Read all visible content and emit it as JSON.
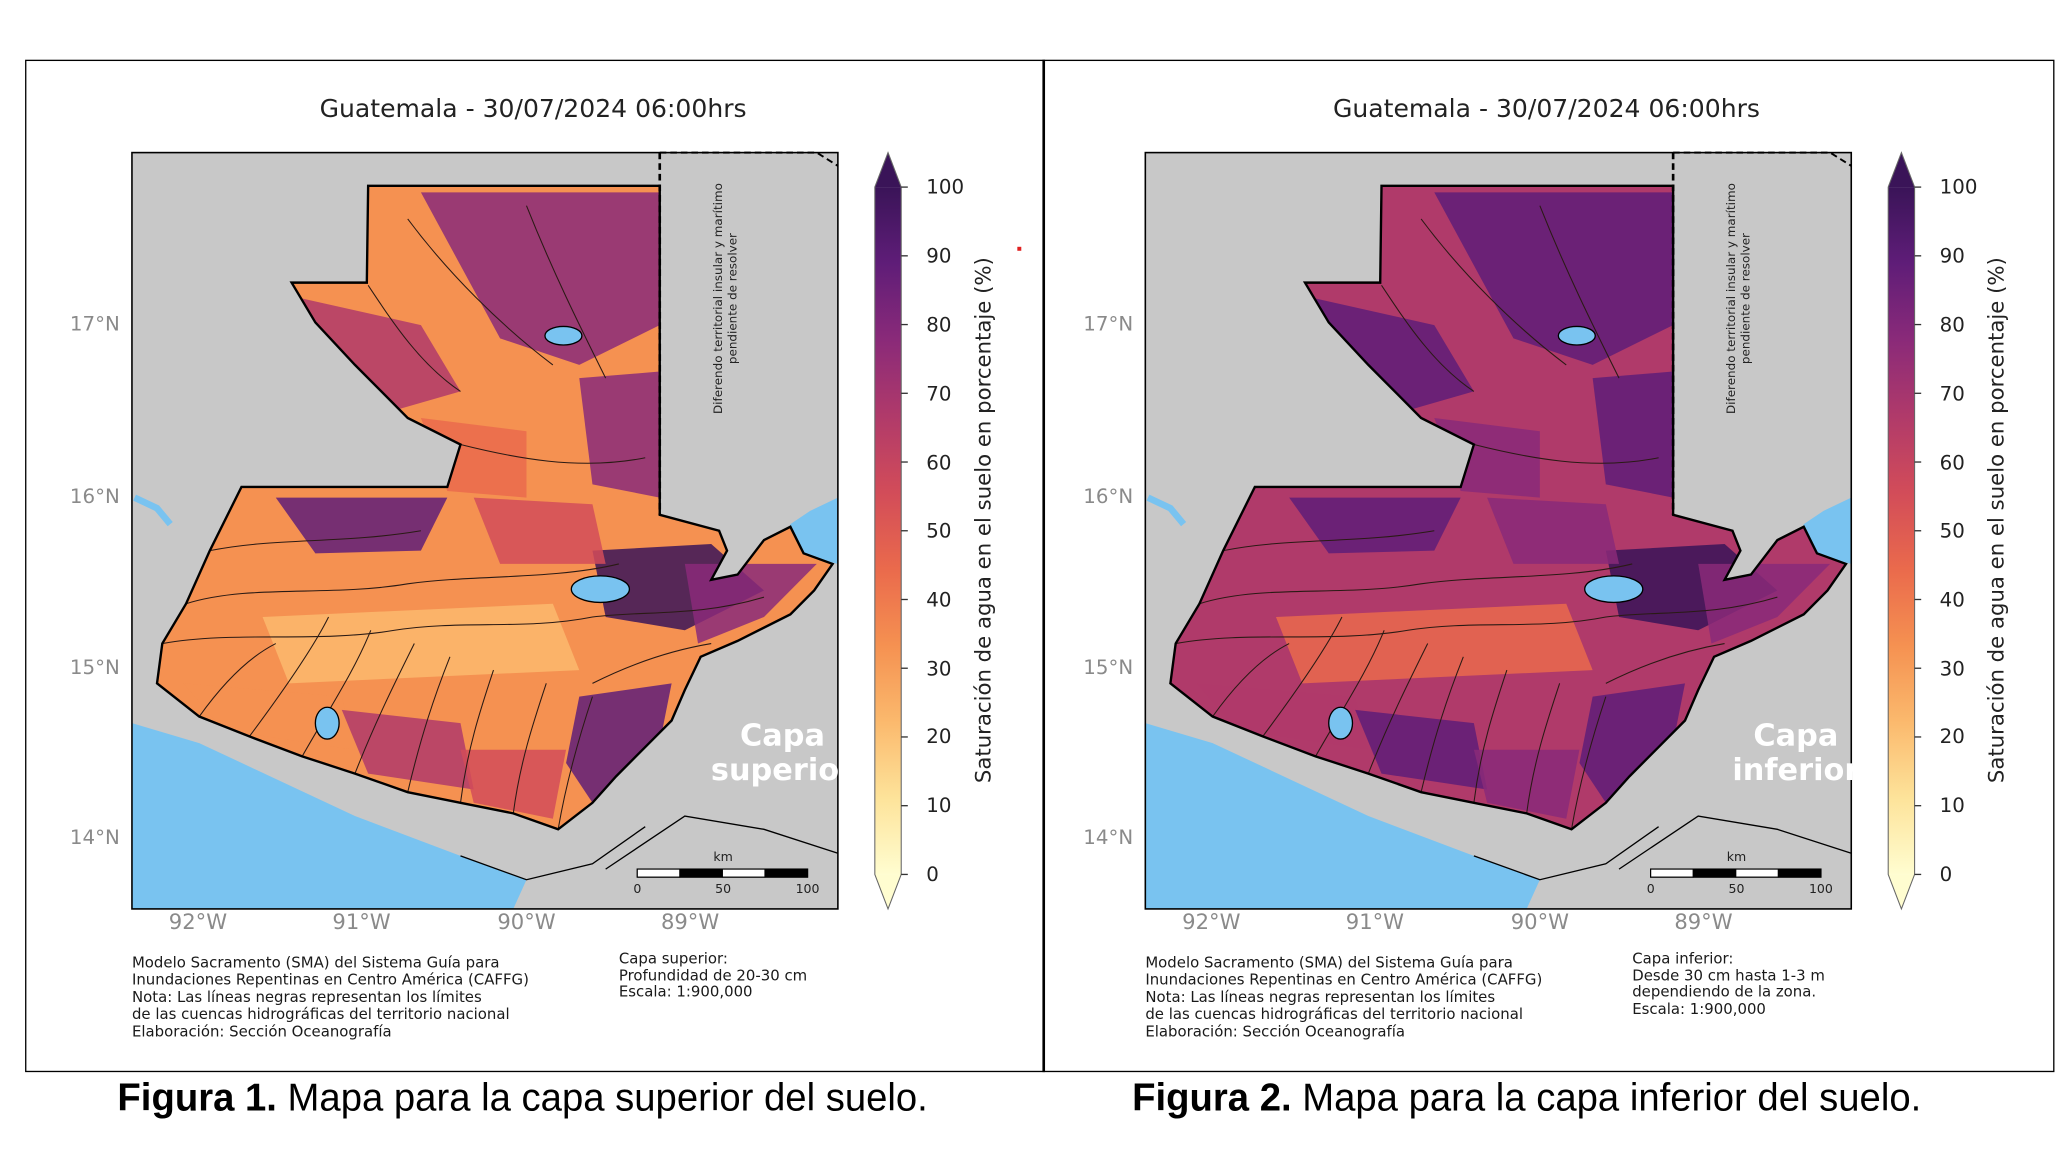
{
  "panels": [
    {
      "title": "Guatemala - 30/07/2024  06:00hrs",
      "layer": "superior",
      "layer_label_lines": [
        "Capa",
        "superior"
      ],
      "colorbar_label": "Saturación de agua en el suelo en porcentaje (%)",
      "colorbar_ticks": [
        "100",
        "90",
        "80",
        "70",
        "60",
        "50",
        "40",
        "30",
        "20",
        "10",
        "0"
      ],
      "lat_labels": [
        "17°N",
        "16°N",
        "15°N",
        "14°N"
      ],
      "lon_labels": [
        "92°W",
        "91°W",
        "90°W",
        "89°W"
      ],
      "dispute_lines": [
        "Diferendo territorial insular y marítimo",
        "pendiente de resolver"
      ],
      "scale_labels": [
        "km",
        "0",
        "50",
        "100"
      ],
      "notes": [
        "Modelo Sacramento (SMA) del Sistema Guía para",
        "Inundaciones Repentinas en Centro América (CAFFG)",
        "Nota: Las líneas negras representan los límites",
        "de las cuencas hidrográficas del territorio nacional",
        "Elaboración: Sección Oceanografía"
      ],
      "meta": [
        "Capa superior:",
        "Profundidad de 20-30 cm",
        "Escala: 1:900,000"
      ],
      "caption_bold": "Figura 1.",
      "caption_text": " Mapa para la capa superior del suelo."
    },
    {
      "title": "Guatemala - 30/07/2024  06:00hrs",
      "layer": "inferior",
      "layer_label_lines": [
        "Capa",
        "inferior"
      ],
      "colorbar_label": "Saturación de agua en el suelo en porcentaje (%)",
      "colorbar_ticks": [
        "100",
        "90",
        "80",
        "70",
        "60",
        "50",
        "40",
        "30",
        "20",
        "10",
        "0"
      ],
      "lat_labels": [
        "17°N",
        "16°N",
        "15°N",
        "14°N"
      ],
      "lon_labels": [
        "92°W",
        "91°W",
        "90°W",
        "89°W"
      ],
      "dispute_lines": [
        "Diferendo territorial insular y marítimo",
        "pendiente de resolver"
      ],
      "scale_labels": [
        "km",
        "0",
        "50",
        "100"
      ],
      "notes": [
        "Modelo Sacramento (SMA) del Sistema Guía para",
        "Inundaciones Repentinas en Centro América (CAFFG)",
        "Nota: Las líneas negras representan los límites",
        "de las cuencas hidrográficas del territorio nacional",
        "Elaboración: Sección Oceanografía"
      ],
      "meta": [
        "Capa inferior:",
        "Desde 30 cm hasta 1-3 m",
        "dependiendo de la zona.",
        "Escala: 1:900,000"
      ],
      "caption_bold": "Figura 2.",
      "caption_text": " Mapa para la capa inferior del suelo."
    }
  ],
  "colors": {
    "land_outside": "#c8c8c8",
    "water": "#79c3f0",
    "colorbar_stops": [
      "#fffdd0",
      "#fde39a",
      "#fbb96d",
      "#f59151",
      "#ea6a4c",
      "#d24c59",
      "#b03a6a",
      "#8a2a79",
      "#5f1d78",
      "#3a1458"
    ]
  }
}
